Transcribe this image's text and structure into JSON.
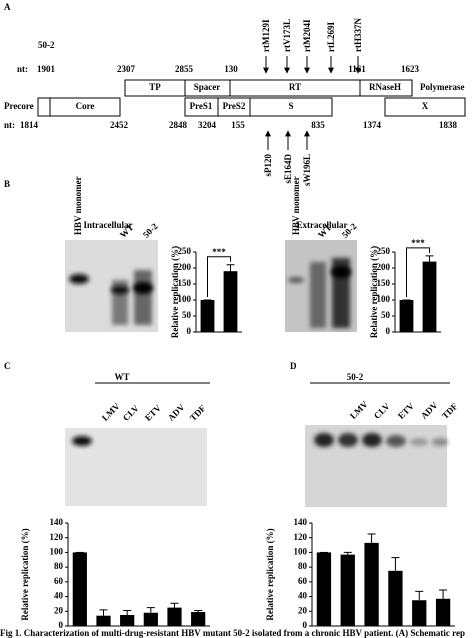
{
  "panel_labels": [
    "A",
    "B",
    "C",
    "D"
  ],
  "map": {
    "title": "50-2",
    "nt_label": "nt:",
    "polymerase": "Polymerase",
    "precore": "Precore",
    "top_positions": [
      1901,
      2307,
      2855,
      130,
      1161,
      1623
    ],
    "bottom_positions": [
      1814,
      2452,
      2848,
      3204,
      155,
      835,
      1374,
      1838
    ],
    "top_boxes": [
      "TP",
      "Spacer",
      "RT",
      "RNaseH"
    ],
    "bottom_boxes": [
      "Core",
      "PreS1",
      "PreS2",
      "S",
      "X"
    ],
    "rt_mutations": [
      "rtM129I",
      "rtV173L",
      "rtM204I",
      "rtL269I",
      "rtH337N"
    ],
    "s_mutations": [
      "sP120",
      "sE164D",
      "sW196L"
    ]
  },
  "gels": [
    {
      "title": "Intracellular",
      "lanes": [
        "HBV monomer",
        "WT",
        "50-2"
      ]
    },
    {
      "title": "Extracellular",
      "lanes": [
        "HBV monomer",
        "WT",
        "50-2"
      ]
    },
    {
      "title": "WT",
      "lanes": [
        "LMV",
        "CLV",
        "ETV",
        "ADV",
        "TDF"
      ]
    },
    {
      "title": "50-2",
      "lanes": [
        "LMV",
        "CLV",
        "ETV",
        "ADV",
        "TDF"
      ]
    }
  ],
  "chart_data": [
    {
      "type": "bar",
      "y_label": "Relative replication (%)",
      "values": [
        100,
        190
      ],
      "errors": [
        0,
        20
      ],
      "color": "#000000",
      "ylim": [
        0,
        250
      ],
      "yticks": [
        0,
        50,
        100,
        150,
        200,
        250
      ],
      "annotation": "***"
    },
    {
      "type": "bar",
      "y_label": "Relative replication (%)",
      "values": [
        100,
        220
      ],
      "errors": [
        0,
        18
      ],
      "color": "#000000",
      "ylim": [
        0,
        250
      ],
      "yticks": [
        0,
        50,
        100,
        150,
        200,
        250
      ],
      "annotation": "***"
    },
    {
      "type": "bar",
      "y_label": "Relative replication (%)",
      "values": [
        100,
        14,
        15,
        18,
        25,
        19
      ],
      "errors": [
        0,
        8,
        6,
        7,
        6,
        2
      ],
      "color": "#000000",
      "ylim": [
        0,
        140
      ],
      "yticks": [
        0,
        20,
        40,
        60,
        80,
        100,
        120,
        140
      ]
    },
    {
      "type": "bar",
      "y_label": "Relative replication (%)",
      "values": [
        100,
        97,
        113,
        75,
        35,
        37
      ],
      "errors": [
        0,
        3,
        12,
        18,
        12,
        12
      ],
      "color": "#000000",
      "ylim": [
        0,
        140
      ],
      "yticks": [
        0,
        20,
        40,
        60,
        80,
        100,
        120,
        140
      ]
    }
  ],
  "caption": "Fig 1. Characterization of multi-drug-resistant HBV mutant 50-2 isolated from a chronic HBV patient. (A) Schematic rep"
}
